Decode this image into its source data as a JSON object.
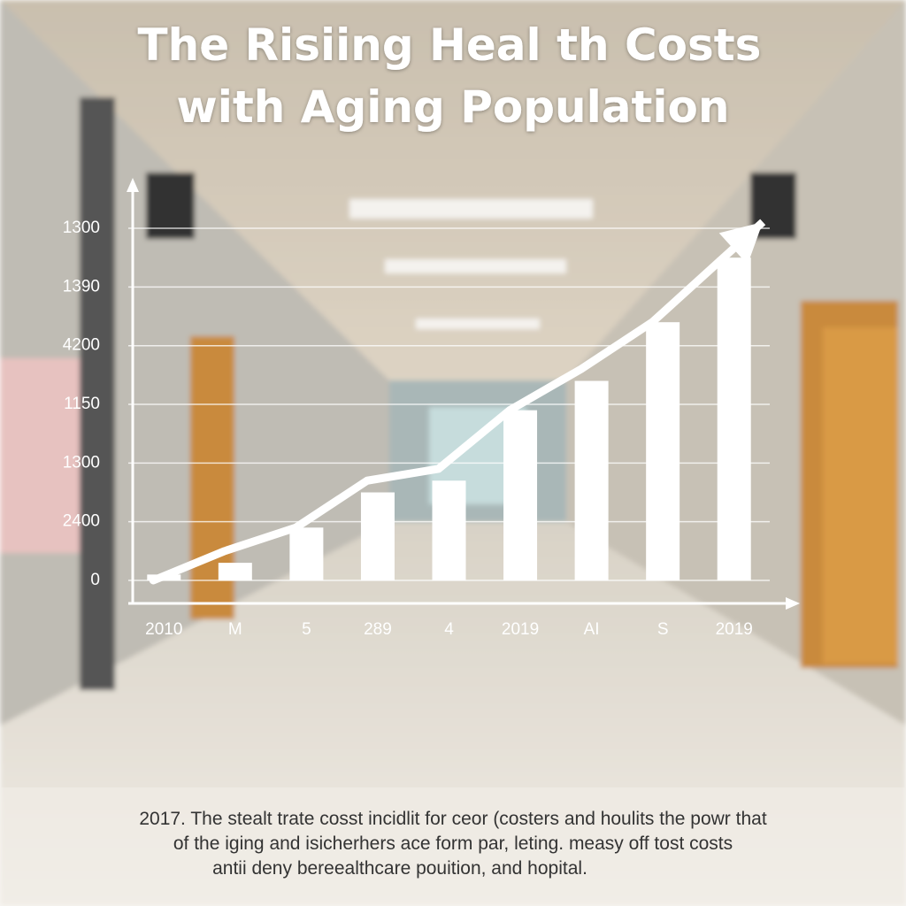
{
  "chart_data": {
    "type": "bar",
    "title": [
      "The Risiing Heal th Costs",
      "with Aging Population"
    ],
    "categories": [
      "2010",
      "M",
      "5",
      "289",
      "4",
      "2019",
      "AI",
      "S",
      "2019"
    ],
    "values": [
      0.1,
      0.3,
      0.9,
      1.5,
      1.7,
      2.9,
      3.4,
      4.4,
      5.5
    ],
    "trend": [
      0,
      0.5,
      0.9,
      1.7,
      1.9,
      2.9,
      3.6,
      4.4,
      5.5
    ],
    "color": "#ffffff",
    "ylim": [
      0,
      6.8
    ],
    "yticks": [
      {
        "value": 0,
        "label": "0"
      },
      {
        "value": 1,
        "label": "2400"
      },
      {
        "value": 2,
        "label": "1300"
      },
      {
        "value": 3,
        "label": "1150"
      },
      {
        "value": 4,
        "label": "4200"
      },
      {
        "value": 5,
        "label": "1390"
      },
      {
        "value": 6,
        "label": "1300"
      }
    ],
    "grid": true,
    "caption": [
      "2017. The stealt trate cosst incidlit for ceor (costers and houlits the powr that",
      "of the iging and isicherhers ace form par, leting. measy off tost costs",
      "antii deny bereealthcare pouition, and hopital."
    ]
  }
}
